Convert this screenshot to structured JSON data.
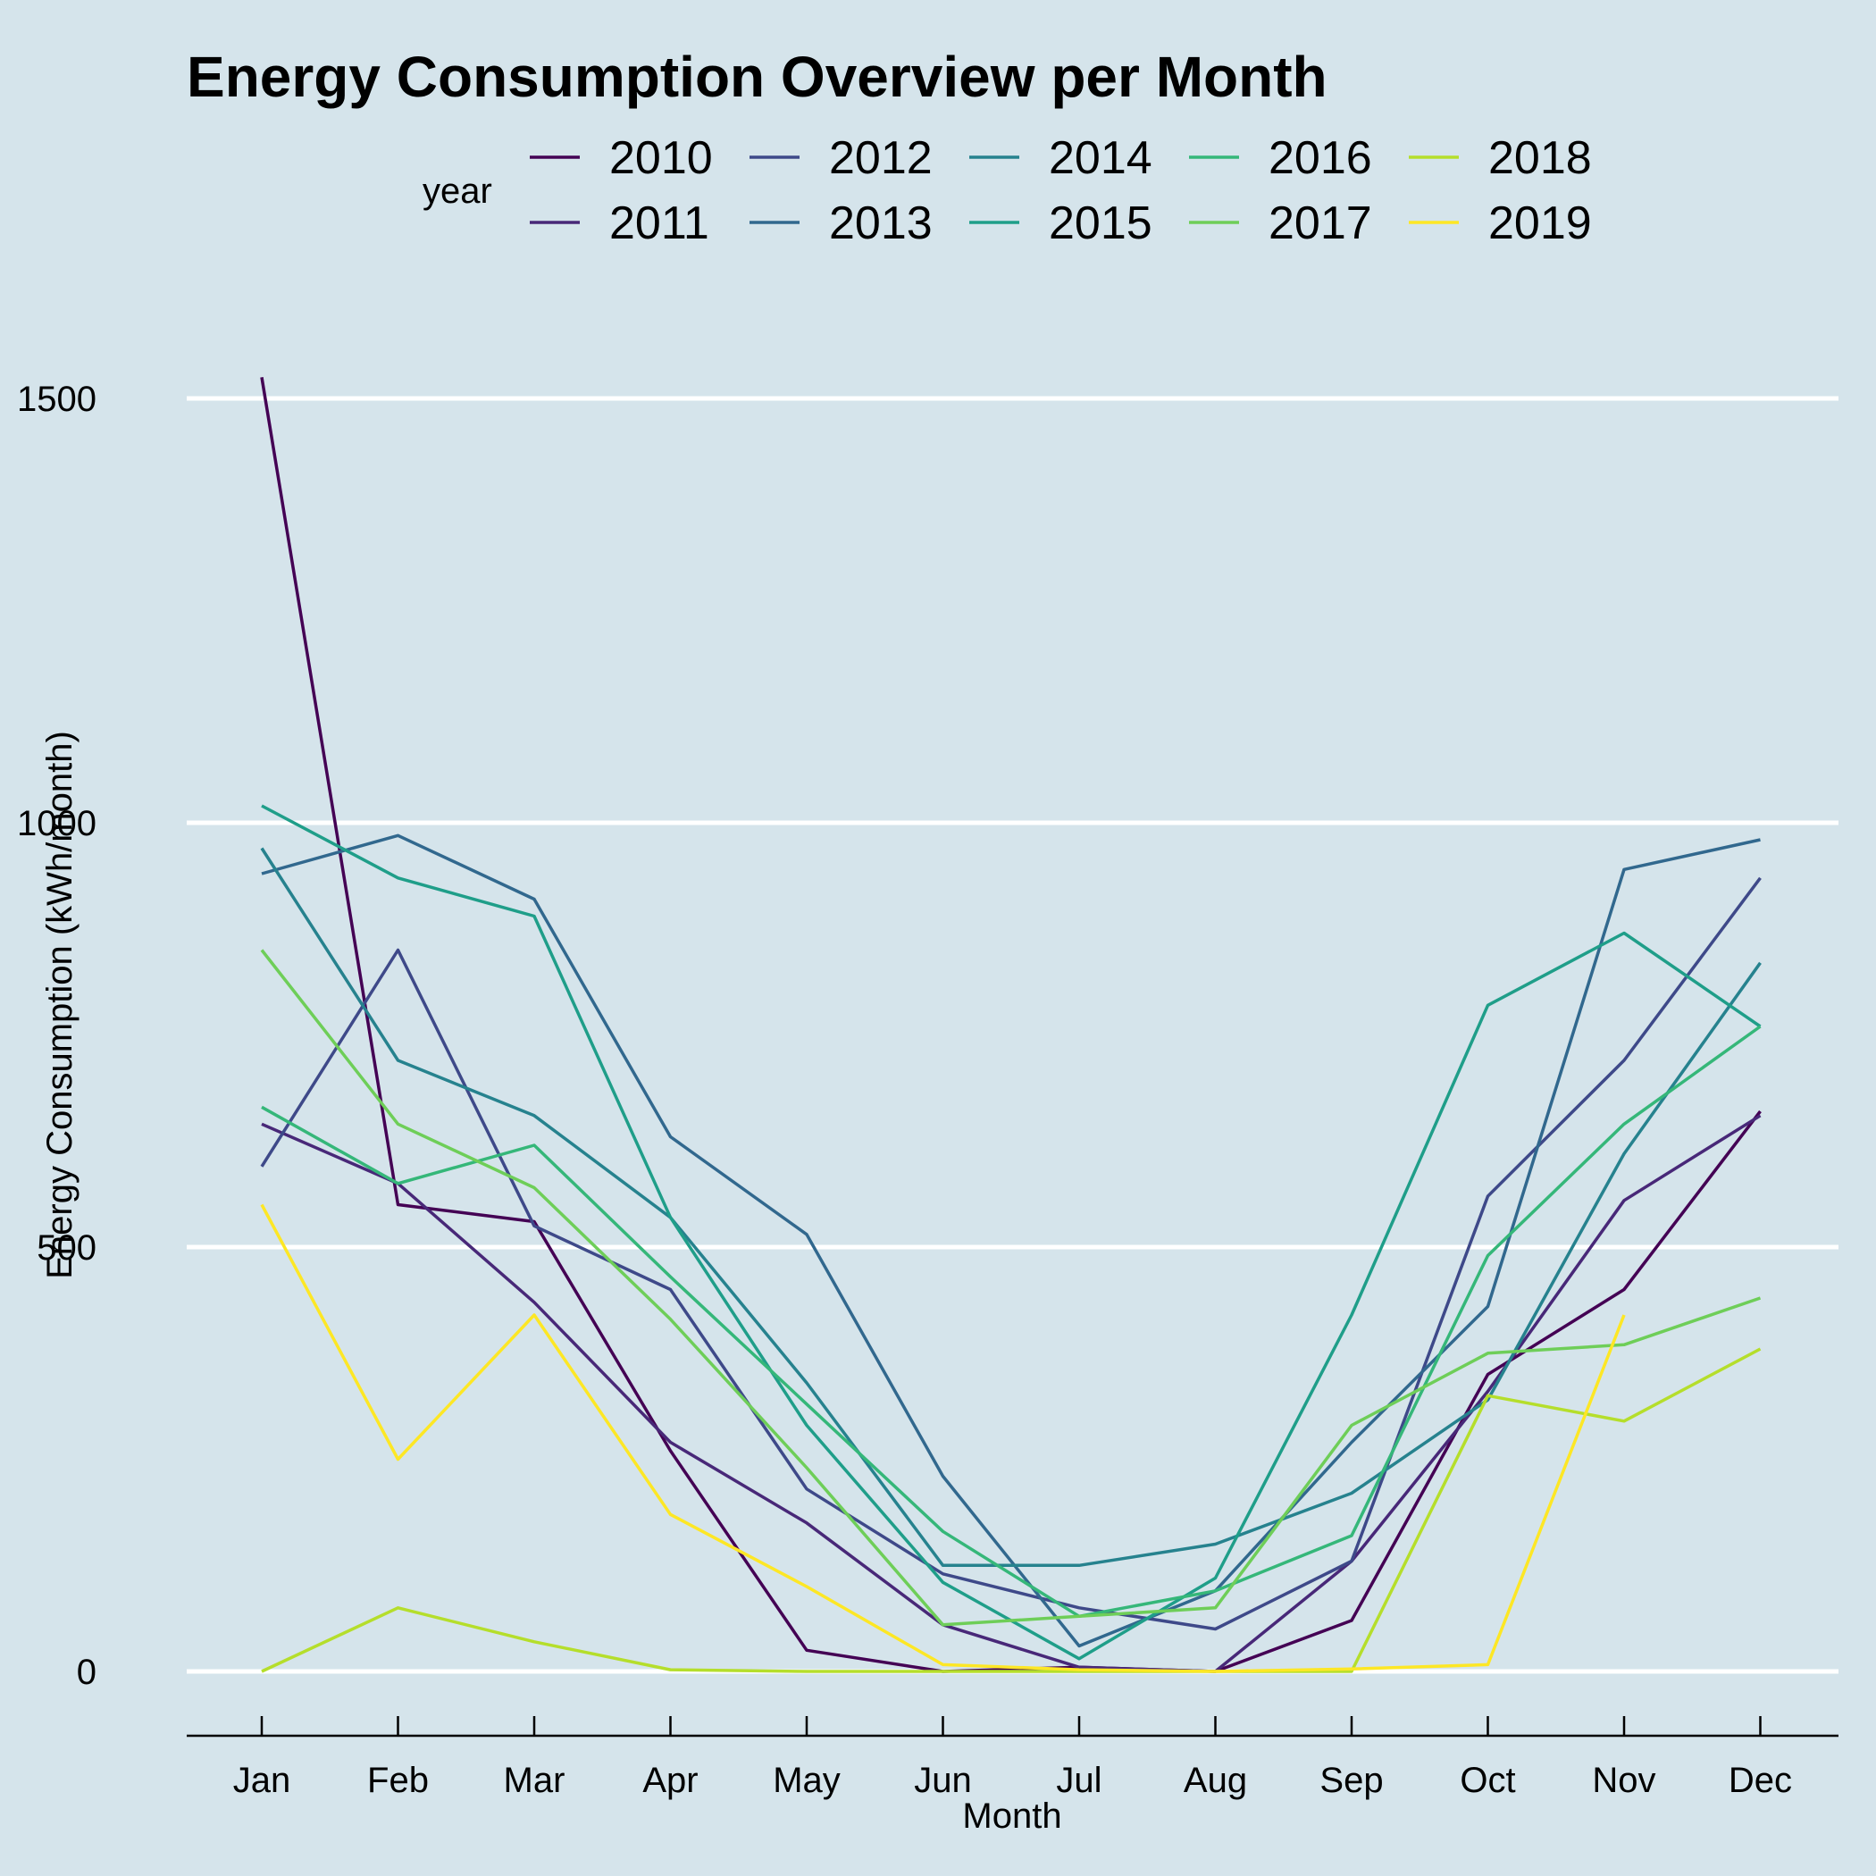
{
  "chart_data": {
    "type": "line",
    "title": "Energy Consumption Overview per Month",
    "xlabel": "Month",
    "ylabel": "Energy Consumption (kWh/month)",
    "legend_title": "year",
    "legend_position": "top",
    "grid": "horizontal major gridlines",
    "ylim": [
      -75,
      1630
    ],
    "yticks": [
      0,
      500,
      1000,
      1500
    ],
    "categories": [
      "Jan",
      "Feb",
      "Mar",
      "Apr",
      "May",
      "Jun",
      "Jul",
      "Aug",
      "Sep",
      "Oct",
      "Nov",
      "Dec"
    ],
    "series": [
      {
        "name": "2010",
        "color": "#440154",
        "values": [
          1525,
          550,
          530,
          260,
          25,
          0,
          5,
          0,
          60,
          350,
          450,
          660
        ]
      },
      {
        "name": "2011",
        "color": "#482878",
        "values": [
          645,
          575,
          435,
          270,
          175,
          55,
          5,
          0,
          130,
          330,
          555,
          655
        ]
      },
      {
        "name": "2012",
        "color": "#3e4989",
        "values": [
          595,
          850,
          525,
          450,
          215,
          115,
          75,
          50,
          130,
          560,
          720,
          935
        ]
      },
      {
        "name": "2013",
        "color": "#31688e",
        "values": [
          940,
          985,
          910,
          630,
          515,
          230,
          30,
          95,
          270,
          430,
          945,
          980
        ]
      },
      {
        "name": "2014",
        "color": "#26828e",
        "values": [
          970,
          720,
          655,
          535,
          340,
          125,
          125,
          150,
          210,
          320,
          610,
          835
        ]
      },
      {
        "name": "2015",
        "color": "#1f9e89",
        "values": [
          1020,
          935,
          890,
          535,
          290,
          105,
          15,
          110,
          420,
          785,
          870,
          760
        ]
      },
      {
        "name": "2016",
        "color": "#35b779",
        "values": [
          665,
          575,
          620,
          465,
          315,
          165,
          65,
          95,
          160,
          490,
          645,
          760
        ]
      },
      {
        "name": "2017",
        "color": "#6ece58",
        "values": [
          850,
          645,
          570,
          415,
          240,
          55,
          65,
          75,
          290,
          375,
          385,
          440
        ]
      },
      {
        "name": "2018",
        "color": "#b5de2b",
        "values": [
          0,
          75,
          35,
          2,
          0,
          0,
          0,
          0,
          0,
          325,
          295,
          380
        ]
      },
      {
        "name": "2019",
        "color": "#fde725",
        "values": [
          550,
          250,
          420,
          185,
          100,
          8,
          2,
          0,
          3,
          8,
          420,
          null
        ]
      }
    ]
  }
}
